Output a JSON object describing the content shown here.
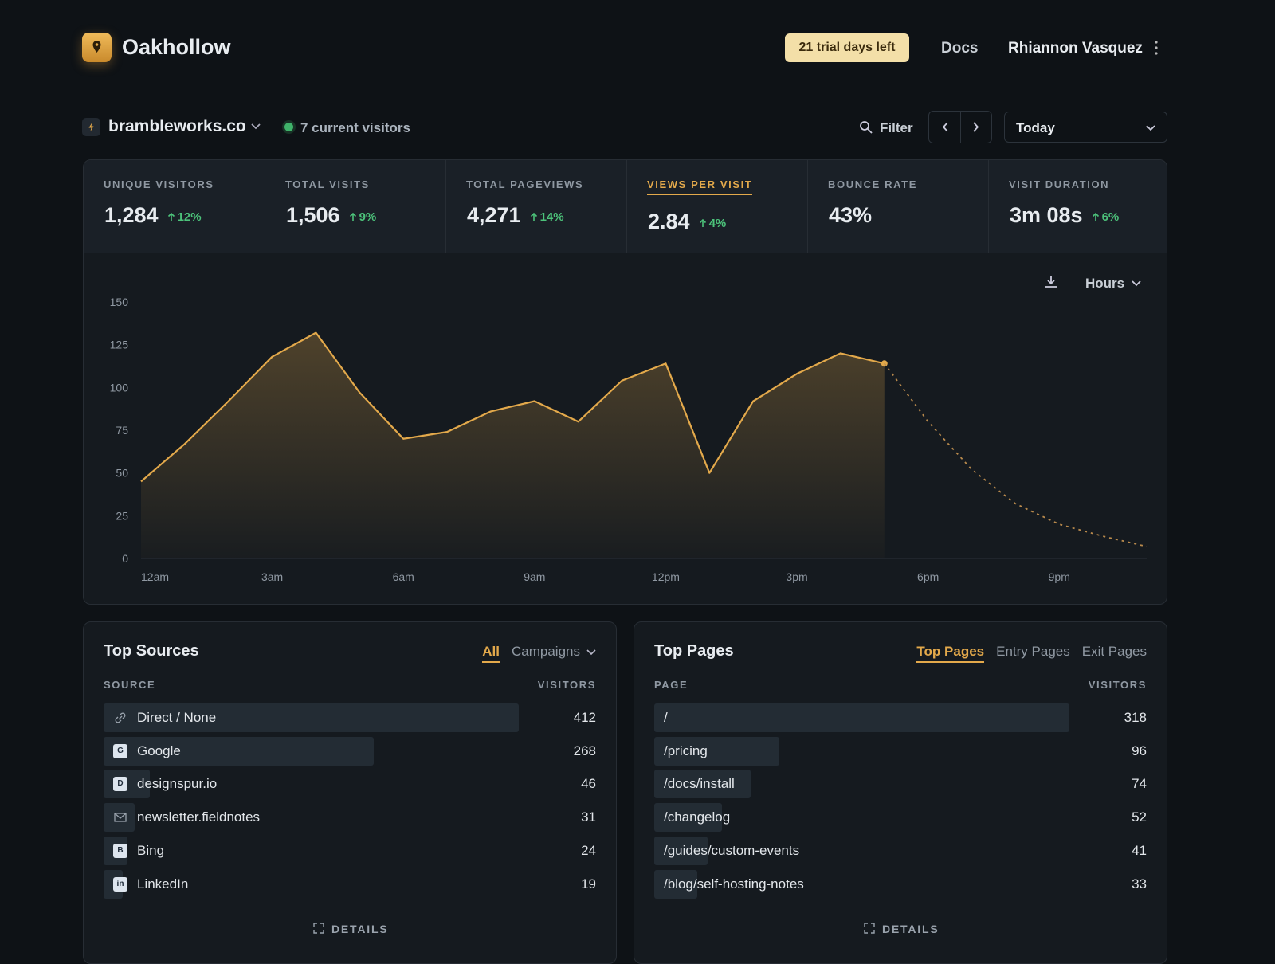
{
  "header": {
    "brand": "Oakhollow",
    "trial": "21 trial days left",
    "docs": "Docs",
    "user": "Rhiannon Vasquez"
  },
  "site": {
    "domain": "brambleworks.co",
    "visitors": "7 current visitors",
    "filter": "Filter",
    "period": "Today"
  },
  "stats": [
    {
      "label": "UNIQUE VISITORS",
      "value": "1,284",
      "change": "12%"
    },
    {
      "label": "TOTAL VISITS",
      "value": "1,506",
      "change": "9%"
    },
    {
      "label": "TOTAL PAGEVIEWS",
      "value": "4,271",
      "change": "14%"
    },
    {
      "label": "VIEWS PER VISIT",
      "value": "2.84",
      "change": "4%",
      "active": true
    },
    {
      "label": "BOUNCE RATE",
      "value": "43%"
    },
    {
      "label": "VISIT DURATION",
      "value": "3m 08s",
      "change": "6%"
    }
  ],
  "chart_data": {
    "type": "line",
    "interval": "Hours",
    "categories": [
      "12am",
      null,
      null,
      "3am",
      null,
      null,
      "6am",
      null,
      null,
      "9am",
      null,
      null,
      "12pm",
      null,
      null,
      "3pm",
      null,
      null,
      "6pm",
      null,
      null,
      "9pm",
      null,
      null
    ],
    "series": [
      {
        "color": "#e3a94b",
        "values": [
          45,
          67,
          92,
          118,
          132,
          97,
          70,
          74,
          86,
          92,
          80,
          104,
          114,
          50,
          92,
          108,
          120,
          114,
          null,
          null,
          null,
          null,
          null,
          null
        ]
      },
      {
        "color": "#b98a4c",
        "dashed": true,
        "values": [
          null,
          null,
          null,
          null,
          null,
          null,
          null,
          null,
          null,
          null,
          null,
          null,
          null,
          null,
          null,
          null,
          null,
          114,
          80,
          52,
          32,
          20,
          13,
          7
        ]
      }
    ],
    "ylim": [
      0,
      150
    ],
    "yticks": [
      0,
      25,
      50,
      75,
      100,
      125,
      150
    ],
    "grid": false
  },
  "sources": {
    "title": "Top Sources",
    "tabs": [
      {
        "label": "All",
        "active": true
      },
      {
        "label": "Campaigns"
      }
    ],
    "columns": [
      "SOURCE",
      "VISITORS"
    ],
    "rows": [
      {
        "name": "Direct / None",
        "visitors": 412
      },
      {
        "name": "Google",
        "icon": "G",
        "visitors": 268
      },
      {
        "name": "designspur.io",
        "icon": "D",
        "visitors": 46
      },
      {
        "name": "newsletter.fieldnotes",
        "visitors": 31
      },
      {
        "name": "Bing",
        "icon": "B",
        "visitors": 24
      },
      {
        "name": "LinkedIn",
        "icon": "in",
        "visitors": 19
      }
    ],
    "details": "DETAILS"
  },
  "pages": {
    "title": "Top Pages",
    "tabs": [
      {
        "label": "Top Pages",
        "active": true
      },
      {
        "label": "Entry Pages"
      },
      {
        "label": "Exit Pages"
      }
    ],
    "columns": [
      "PAGE",
      "VISITORS"
    ],
    "rows": [
      {
        "name": "/",
        "visitors": 318
      },
      {
        "name": "/pricing",
        "visitors": 96
      },
      {
        "name": "/docs/install",
        "visitors": 74
      },
      {
        "name": "/changelog",
        "visitors": 52
      },
      {
        "name": "/guides/custom-events",
        "visitors": 41
      },
      {
        "name": "/blog/self-hosting-notes",
        "visitors": 33
      }
    ],
    "details": "DETAILS"
  }
}
